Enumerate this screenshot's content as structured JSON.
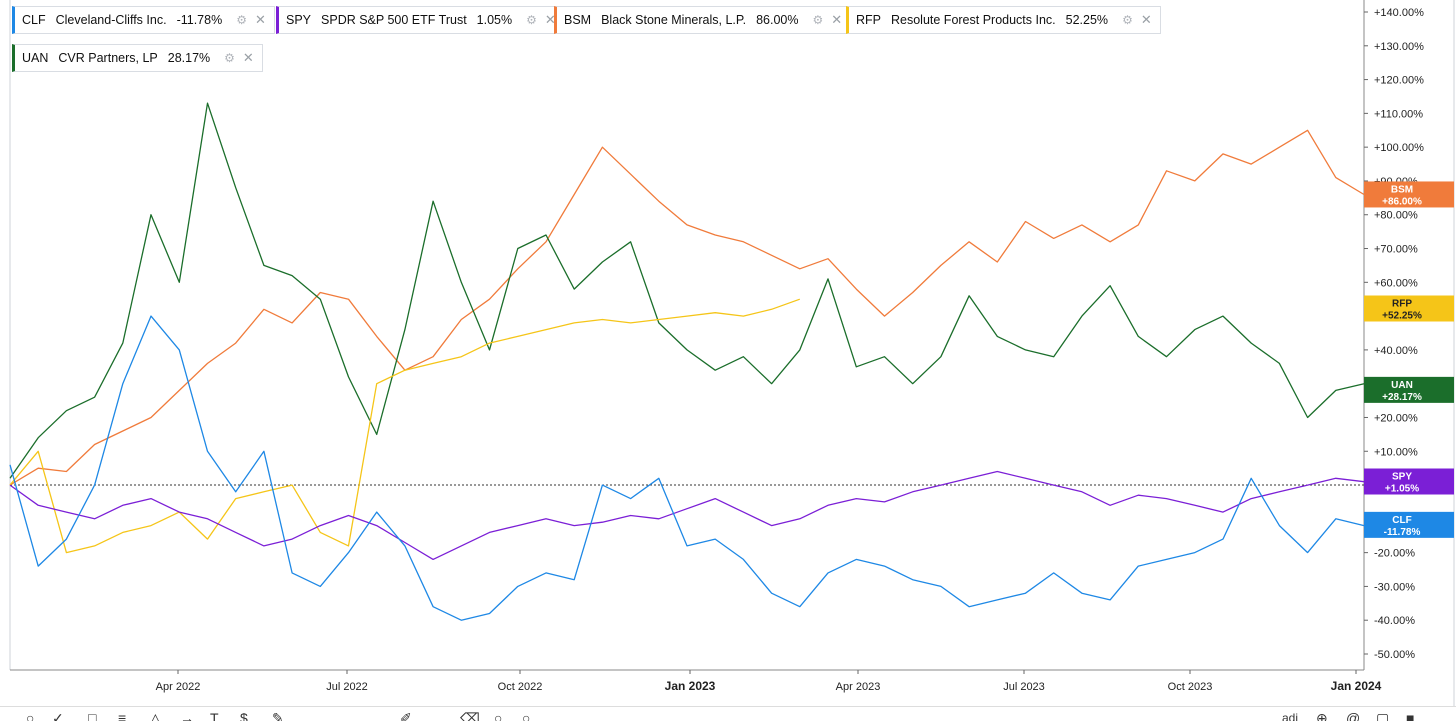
{
  "legend": [
    {
      "symbol": "CLF",
      "name": "Cleveland-Cliffs Inc.",
      "pct": "-11.78%",
      "color": "#1e88e5"
    },
    {
      "symbol": "SPY",
      "name": "SPDR S&P 500 ETF Trust",
      "pct": "1.05%",
      "color": "#7b1fd6"
    },
    {
      "symbol": "BSM",
      "name": "Black Stone Minerals, L.P.",
      "pct": "86.00%",
      "color": "#f07b3b"
    },
    {
      "symbol": "RFP",
      "name": "Resolute Forest Products Inc.",
      "pct": "52.25%",
      "color": "#f5c518"
    },
    {
      "symbol": "UAN",
      "name": "CVR Partners, LP",
      "pct": "28.17%",
      "color": "#1b6e2b"
    }
  ],
  "toolbar": {
    "text_right": "adj"
  },
  "chart_data": {
    "type": "line",
    "x_ticks": [
      "Apr 2022",
      "Jul 2022",
      "Oct 2022",
      "Jan 2023",
      "Apr 2023",
      "Jul 2023",
      "Oct 2023",
      "Jan 2024"
    ],
    "x_ticks_bold": [
      "Jan 2023",
      "Jan 2024"
    ],
    "y_ticks": [
      "+140.00%",
      "+130.00%",
      "+120.00%",
      "+110.00%",
      "+100.00%",
      "+90.00%",
      "+80.00%",
      "+70.00%",
      "+60.00%",
      "+50.00%",
      "+40.00%",
      "+30.00%",
      "+20.00%",
      "+10.00%",
      "0.00%",
      "-10.00%",
      "-20.00%",
      "-30.00%",
      "-40.00%",
      "-50.00%"
    ],
    "ylim": [
      -52,
      141
    ],
    "x_domain": [
      0,
      24
    ],
    "baseline": 0,
    "series": [
      {
        "name": "BSM",
        "label": "BSM",
        "value_text": "+86.00%",
        "value": 86.0,
        "color": "#f07b3b",
        "text_color": "#ffffff",
        "x": [
          0,
          0.5,
          1,
          1.5,
          2,
          2.5,
          3,
          3.5,
          4,
          4.5,
          5,
          5.5,
          6,
          6.5,
          7,
          7.5,
          8,
          8.5,
          9,
          9.5,
          10,
          10.5,
          11,
          11.5,
          12,
          12.5,
          13,
          13.5,
          14,
          14.5,
          15,
          15.5,
          16,
          16.5,
          17,
          17.5,
          18,
          18.5,
          19,
          19.5,
          20,
          20.5,
          21,
          21.5,
          22,
          22.5,
          23,
          23.5,
          24
        ],
        "y": [
          0,
          5,
          4,
          12,
          16,
          20,
          28,
          36,
          42,
          52,
          48,
          57,
          55,
          44,
          34,
          38,
          49,
          55,
          64,
          72,
          86,
          100,
          92,
          84,
          77,
          74,
          72,
          68,
          64,
          67,
          58,
          50,
          57,
          65,
          72,
          66,
          78,
          73,
          77,
          72,
          77,
          93,
          90,
          98,
          95,
          100,
          105,
          91,
          86
        ]
      },
      {
        "name": "UAN",
        "label": "UAN",
        "value_text": "+28.17%",
        "value": 28.17,
        "color": "#1b6e2b",
        "text_color": "#ffffff",
        "x": [
          0,
          0.5,
          1,
          1.5,
          2,
          2.5,
          3,
          3.5,
          4,
          4.5,
          5,
          5.5,
          6,
          6.5,
          7,
          7.5,
          8,
          8.5,
          9,
          9.5,
          10,
          10.5,
          11,
          11.5,
          12,
          12.5,
          13,
          13.5,
          14,
          14.5,
          15,
          15.5,
          16,
          16.5,
          17,
          17.5,
          18,
          18.5,
          19,
          19.5,
          20,
          20.5,
          21,
          21.5,
          22,
          22.5,
          23,
          23.5,
          24
        ],
        "y": [
          2,
          14,
          22,
          26,
          42,
          80,
          60,
          113,
          88,
          65,
          62,
          55,
          32,
          15,
          46,
          84,
          60,
          40,
          70,
          74,
          58,
          66,
          72,
          48,
          40,
          34,
          38,
          30,
          40,
          61,
          35,
          38,
          30,
          38,
          56,
          44,
          40,
          38,
          50,
          59,
          44,
          38,
          46,
          50,
          42,
          36,
          20,
          28,
          30
        ]
      },
      {
        "name": "RFP",
        "label": "RFP",
        "value_text": "+52.25%",
        "value": 52.25,
        "color": "#f5c518",
        "text_color": "#222222",
        "x": [
          0,
          0.5,
          1,
          1.5,
          2,
          2.5,
          3,
          3.5,
          4,
          4.5,
          5,
          5.5,
          6,
          6.5,
          7,
          7.5,
          8,
          8.5,
          9,
          9.5,
          10,
          10.5,
          11,
          11.5,
          12,
          12.5,
          13,
          13.5,
          14
        ],
        "y": [
          0,
          10,
          -20,
          -18,
          -14,
          -12,
          -8,
          -16,
          -4,
          -2,
          0,
          -14,
          -18,
          30,
          34,
          36,
          38,
          42,
          44,
          46,
          48,
          49,
          48,
          49,
          50,
          51,
          50,
          52,
          55
        ]
      },
      {
        "name": "SPY",
        "label": "SPY",
        "value_text": "+1.05%",
        "value": 1.05,
        "color": "#7b1fd6",
        "text_color": "#ffffff",
        "x": [
          0,
          0.5,
          1,
          1.5,
          2,
          2.5,
          3,
          3.5,
          4,
          4.5,
          5,
          5.5,
          6,
          6.5,
          7,
          7.5,
          8,
          8.5,
          9,
          9.5,
          10,
          10.5,
          11,
          11.5,
          12,
          12.5,
          13,
          13.5,
          14,
          14.5,
          15,
          15.5,
          16,
          16.5,
          17,
          17.5,
          18,
          18.5,
          19,
          19.5,
          20,
          20.5,
          21,
          21.5,
          22,
          22.5,
          23,
          23.5,
          24
        ],
        "y": [
          0,
          -6,
          -8,
          -10,
          -6,
          -4,
          -8,
          -10,
          -14,
          -18,
          -16,
          -12,
          -9,
          -12,
          -17,
          -22,
          -18,
          -14,
          -12,
          -10,
          -12,
          -11,
          -9,
          -10,
          -7,
          -4,
          -8,
          -12,
          -10,
          -6,
          -4,
          -5,
          -2,
          0,
          2,
          4,
          2,
          0,
          -2,
          -6,
          -3,
          -4,
          -6,
          -8,
          -4,
          -2,
          0,
          2,
          1
        ]
      },
      {
        "name": "CLF",
        "label": "CLF",
        "value_text": "-11.78%",
        "value": -11.78,
        "color": "#1e88e5",
        "text_color": "#ffffff",
        "x": [
          0,
          0.5,
          1,
          1.5,
          2,
          2.5,
          3,
          3.5,
          4,
          4.5,
          5,
          5.5,
          6,
          6.5,
          7,
          7.5,
          8,
          8.5,
          9,
          9.5,
          10,
          10.5,
          11,
          11.5,
          12,
          12.5,
          13,
          13.5,
          14,
          14.5,
          15,
          15.5,
          16,
          16.5,
          17,
          17.5,
          18,
          18.5,
          19,
          19.5,
          20,
          20.5,
          21,
          21.5,
          22,
          22.5,
          23,
          23.5,
          24
        ],
        "y": [
          6,
          -24,
          -16,
          0,
          30,
          50,
          40,
          10,
          -2,
          10,
          -26,
          -30,
          -20,
          -8,
          -18,
          -36,
          -40,
          -38,
          -30,
          -26,
          -28,
          0,
          -4,
          2,
          -18,
          -16,
          -22,
          -32,
          -36,
          -26,
          -22,
          -24,
          -28,
          -30,
          -36,
          -34,
          -32,
          -26,
          -32,
          -34,
          -24,
          -22,
          -20,
          -16,
          2,
          -12,
          -20,
          -10,
          -12
        ]
      }
    ]
  }
}
